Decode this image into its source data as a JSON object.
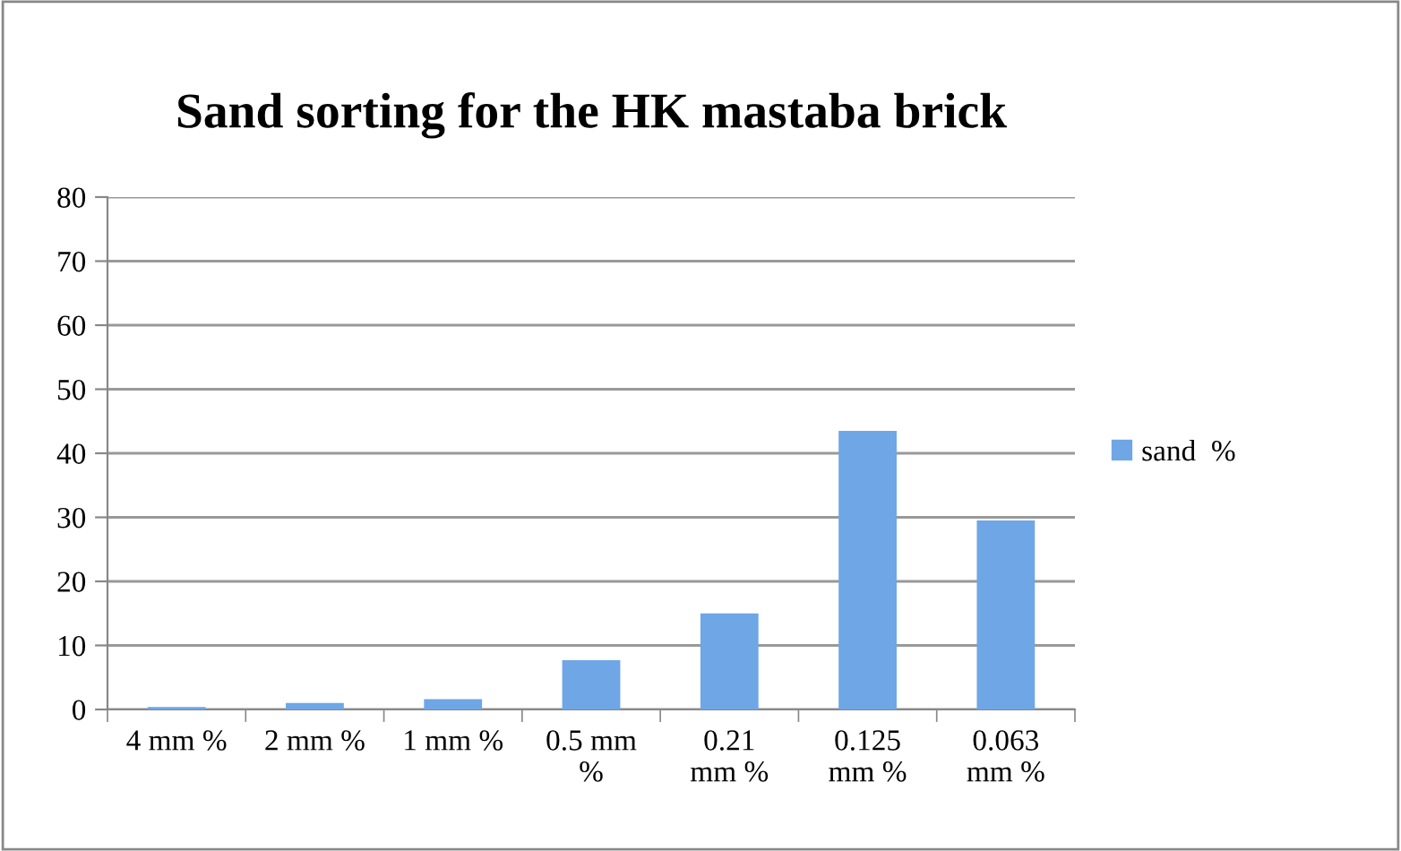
{
  "chart_data": {
    "type": "bar",
    "title": "Sand sorting for the HK mastaba brick",
    "categories": [
      "4 mm %",
      "2 mm %",
      "1 mm %",
      "0.5 mm\n%",
      "0.21\nmm %",
      "0.125\nmm %",
      "0.063\nmm %"
    ],
    "series": [
      {
        "name": "sand  %",
        "color": "#6fa6e6",
        "values": [
          0.4,
          1.0,
          1.6,
          7.7,
          15.0,
          43.5,
          29.5
        ]
      }
    ],
    "ylim": [
      0,
      80
    ],
    "yticks": [
      0,
      10,
      20,
      30,
      40,
      50,
      60,
      70,
      80
    ],
    "grid": "y",
    "legend": "right"
  }
}
